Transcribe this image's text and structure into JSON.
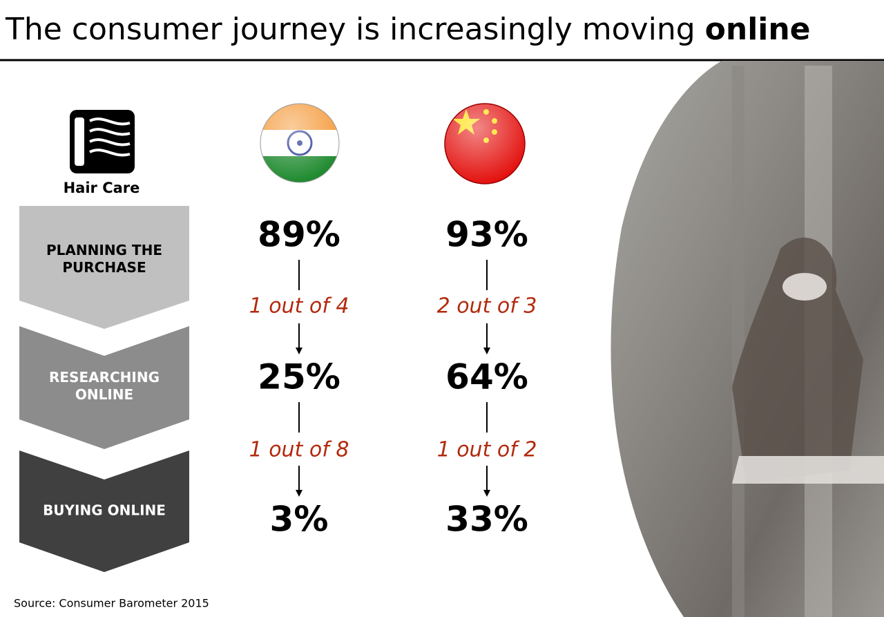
{
  "title": {
    "text": "The consumer journey is increasingly moving",
    "emphasis": "online"
  },
  "category": "Hair Care",
  "stages": [
    [
      "PLANNING THE",
      "PURCHASE"
    ],
    [
      "RESEARCHING",
      "ONLINE"
    ],
    [
      "BUYING ONLINE"
    ]
  ],
  "columns": [
    {
      "values": [
        "89%",
        "25%",
        "3%"
      ],
      "conversions": [
        "1 out of 4",
        "1 out of 8"
      ]
    },
    {
      "values": [
        "93%",
        "64%",
        "33%"
      ],
      "conversions": [
        "2 out of 3",
        "1 out of 2"
      ]
    }
  ],
  "source": "Source: Consumer Barometer 2015"
}
